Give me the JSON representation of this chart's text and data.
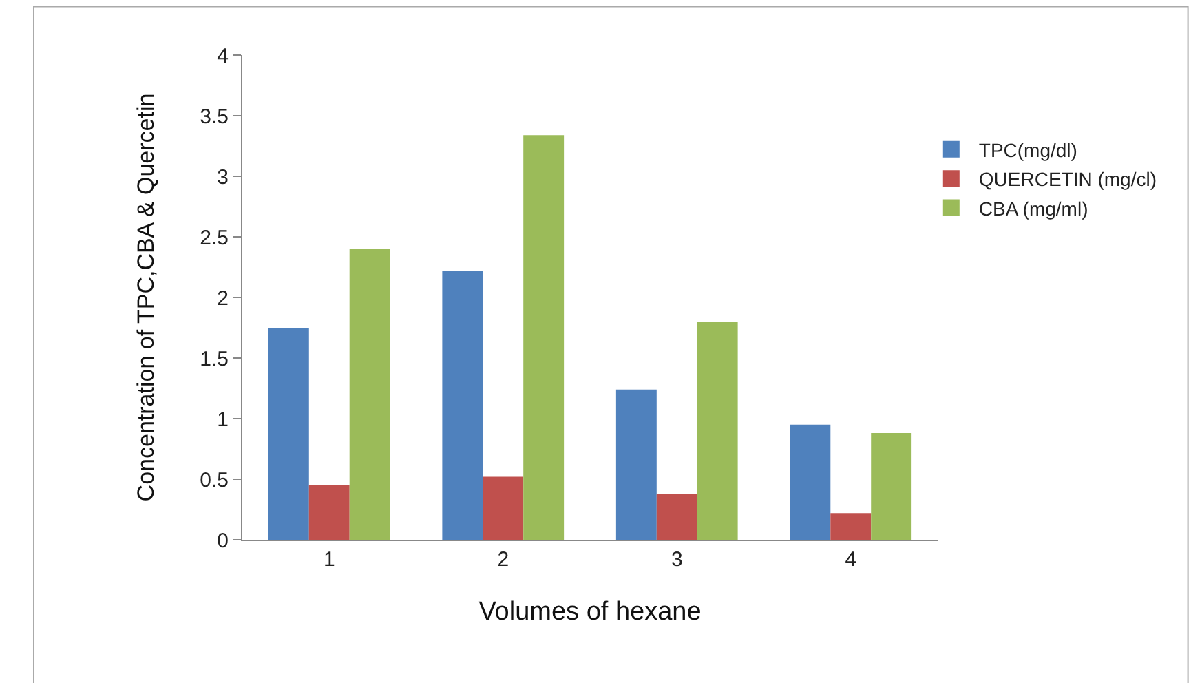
{
  "chart_data": {
    "type": "bar",
    "xlabel": "Volumes of hexane",
    "ylabel": "Concentration of TPC,CBA & Quercetin",
    "categories": [
      "1",
      "2",
      "3",
      "4"
    ],
    "series": [
      {
        "name": "TPC(mg/dl)",
        "color": "#4f81bd",
        "values": [
          1.75,
          2.22,
          1.24,
          0.95
        ]
      },
      {
        "name": "QUERCETIN (mg/cl)",
        "color": "#c0504d",
        "values": [
          0.45,
          0.52,
          0.38,
          0.22
        ]
      },
      {
        "name": "CBA (mg/ml)",
        "color": "#9bbb59",
        "values": [
          2.4,
          3.34,
          1.8,
          0.88
        ]
      }
    ],
    "ylim": [
      0,
      4
    ],
    "yticks": [
      0,
      0.5,
      1,
      1.5,
      2,
      2.5,
      3,
      3.5,
      4
    ],
    "legend": "right"
  }
}
